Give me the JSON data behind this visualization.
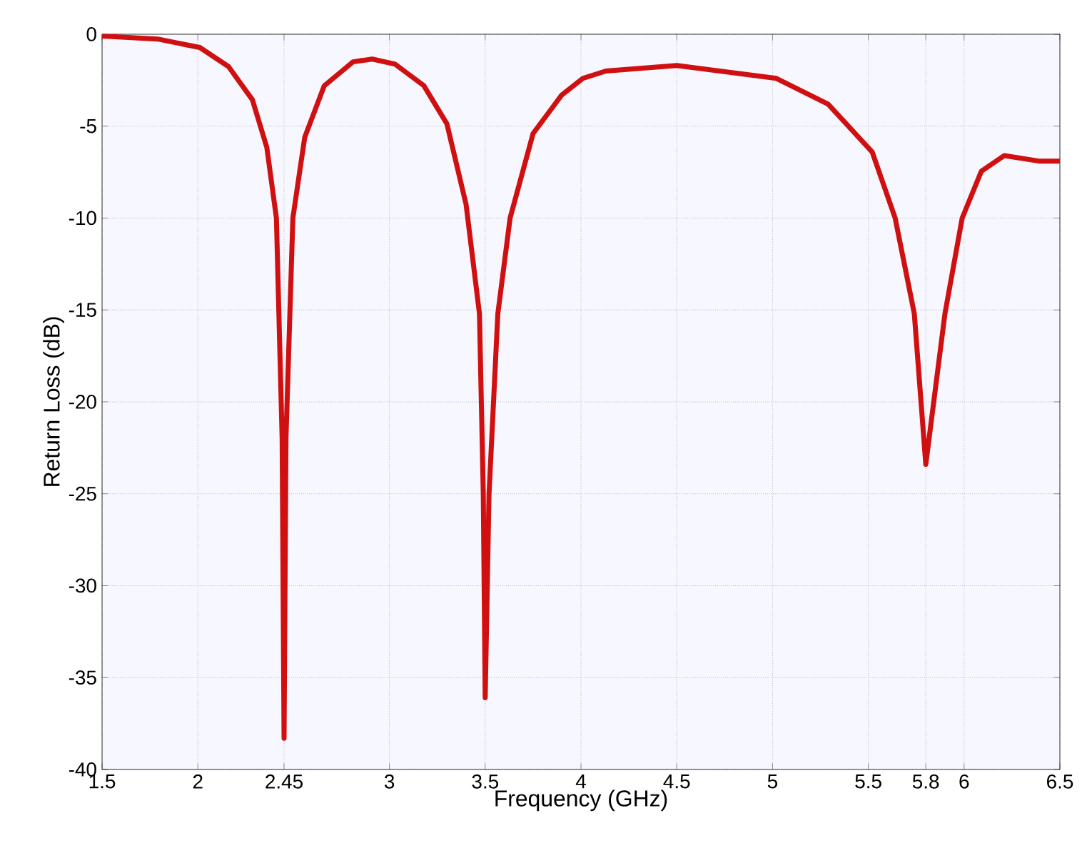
{
  "chart_data": {
    "type": "line",
    "xlabel": "Frequency (GHz)",
    "ylabel": "Return Loss (dB)",
    "x": [
      1.5,
      1.79,
      2.01,
      2.16,
      2.285,
      2.36,
      2.41,
      2.44,
      2.45,
      2.46,
      2.496,
      2.558,
      2.66,
      2.81,
      2.91,
      3.03,
      3.18,
      3.3,
      3.4,
      3.47,
      3.49,
      3.5,
      3.52,
      3.566,
      3.63,
      3.75,
      3.9,
      4.01,
      4.13,
      4.5,
      5.02,
      5.29,
      5.52,
      5.64,
      5.74,
      5.8,
      5.9,
      5.99,
      6.09,
      6.21,
      6.39,
      6.5
    ],
    "values": [
      -0.1,
      -0.26,
      -0.72,
      -1.76,
      -3.57,
      -6.16,
      -10.0,
      -22,
      -38.3,
      -22,
      -10.0,
      -5.6,
      -2.8,
      -1.5,
      -1.35,
      -1.63,
      -2.8,
      -4.87,
      -9.25,
      -15.2,
      -25,
      -36.1,
      -25,
      -15.2,
      -10.0,
      -5.4,
      -3.3,
      -2.4,
      -2.0,
      -1.7,
      -2.4,
      -3.8,
      -6.4,
      -10.0,
      -15.2,
      -23.4,
      -15.2,
      -10.0,
      -7.45,
      -6.6,
      -6.9,
      -6.9
    ],
    "color": "#d01010",
    "xlim": [
      1.5,
      6.5
    ],
    "ylim": [
      -40,
      0
    ],
    "xticks": [
      1.5,
      2,
      2.45,
      3,
      3.5,
      4,
      4.5,
      5,
      5.5,
      5.8,
      6,
      6.5
    ],
    "yticks": [
      -40,
      -35,
      -30,
      -25,
      -20,
      -15,
      -10,
      -5,
      0
    ],
    "grid": true
  }
}
